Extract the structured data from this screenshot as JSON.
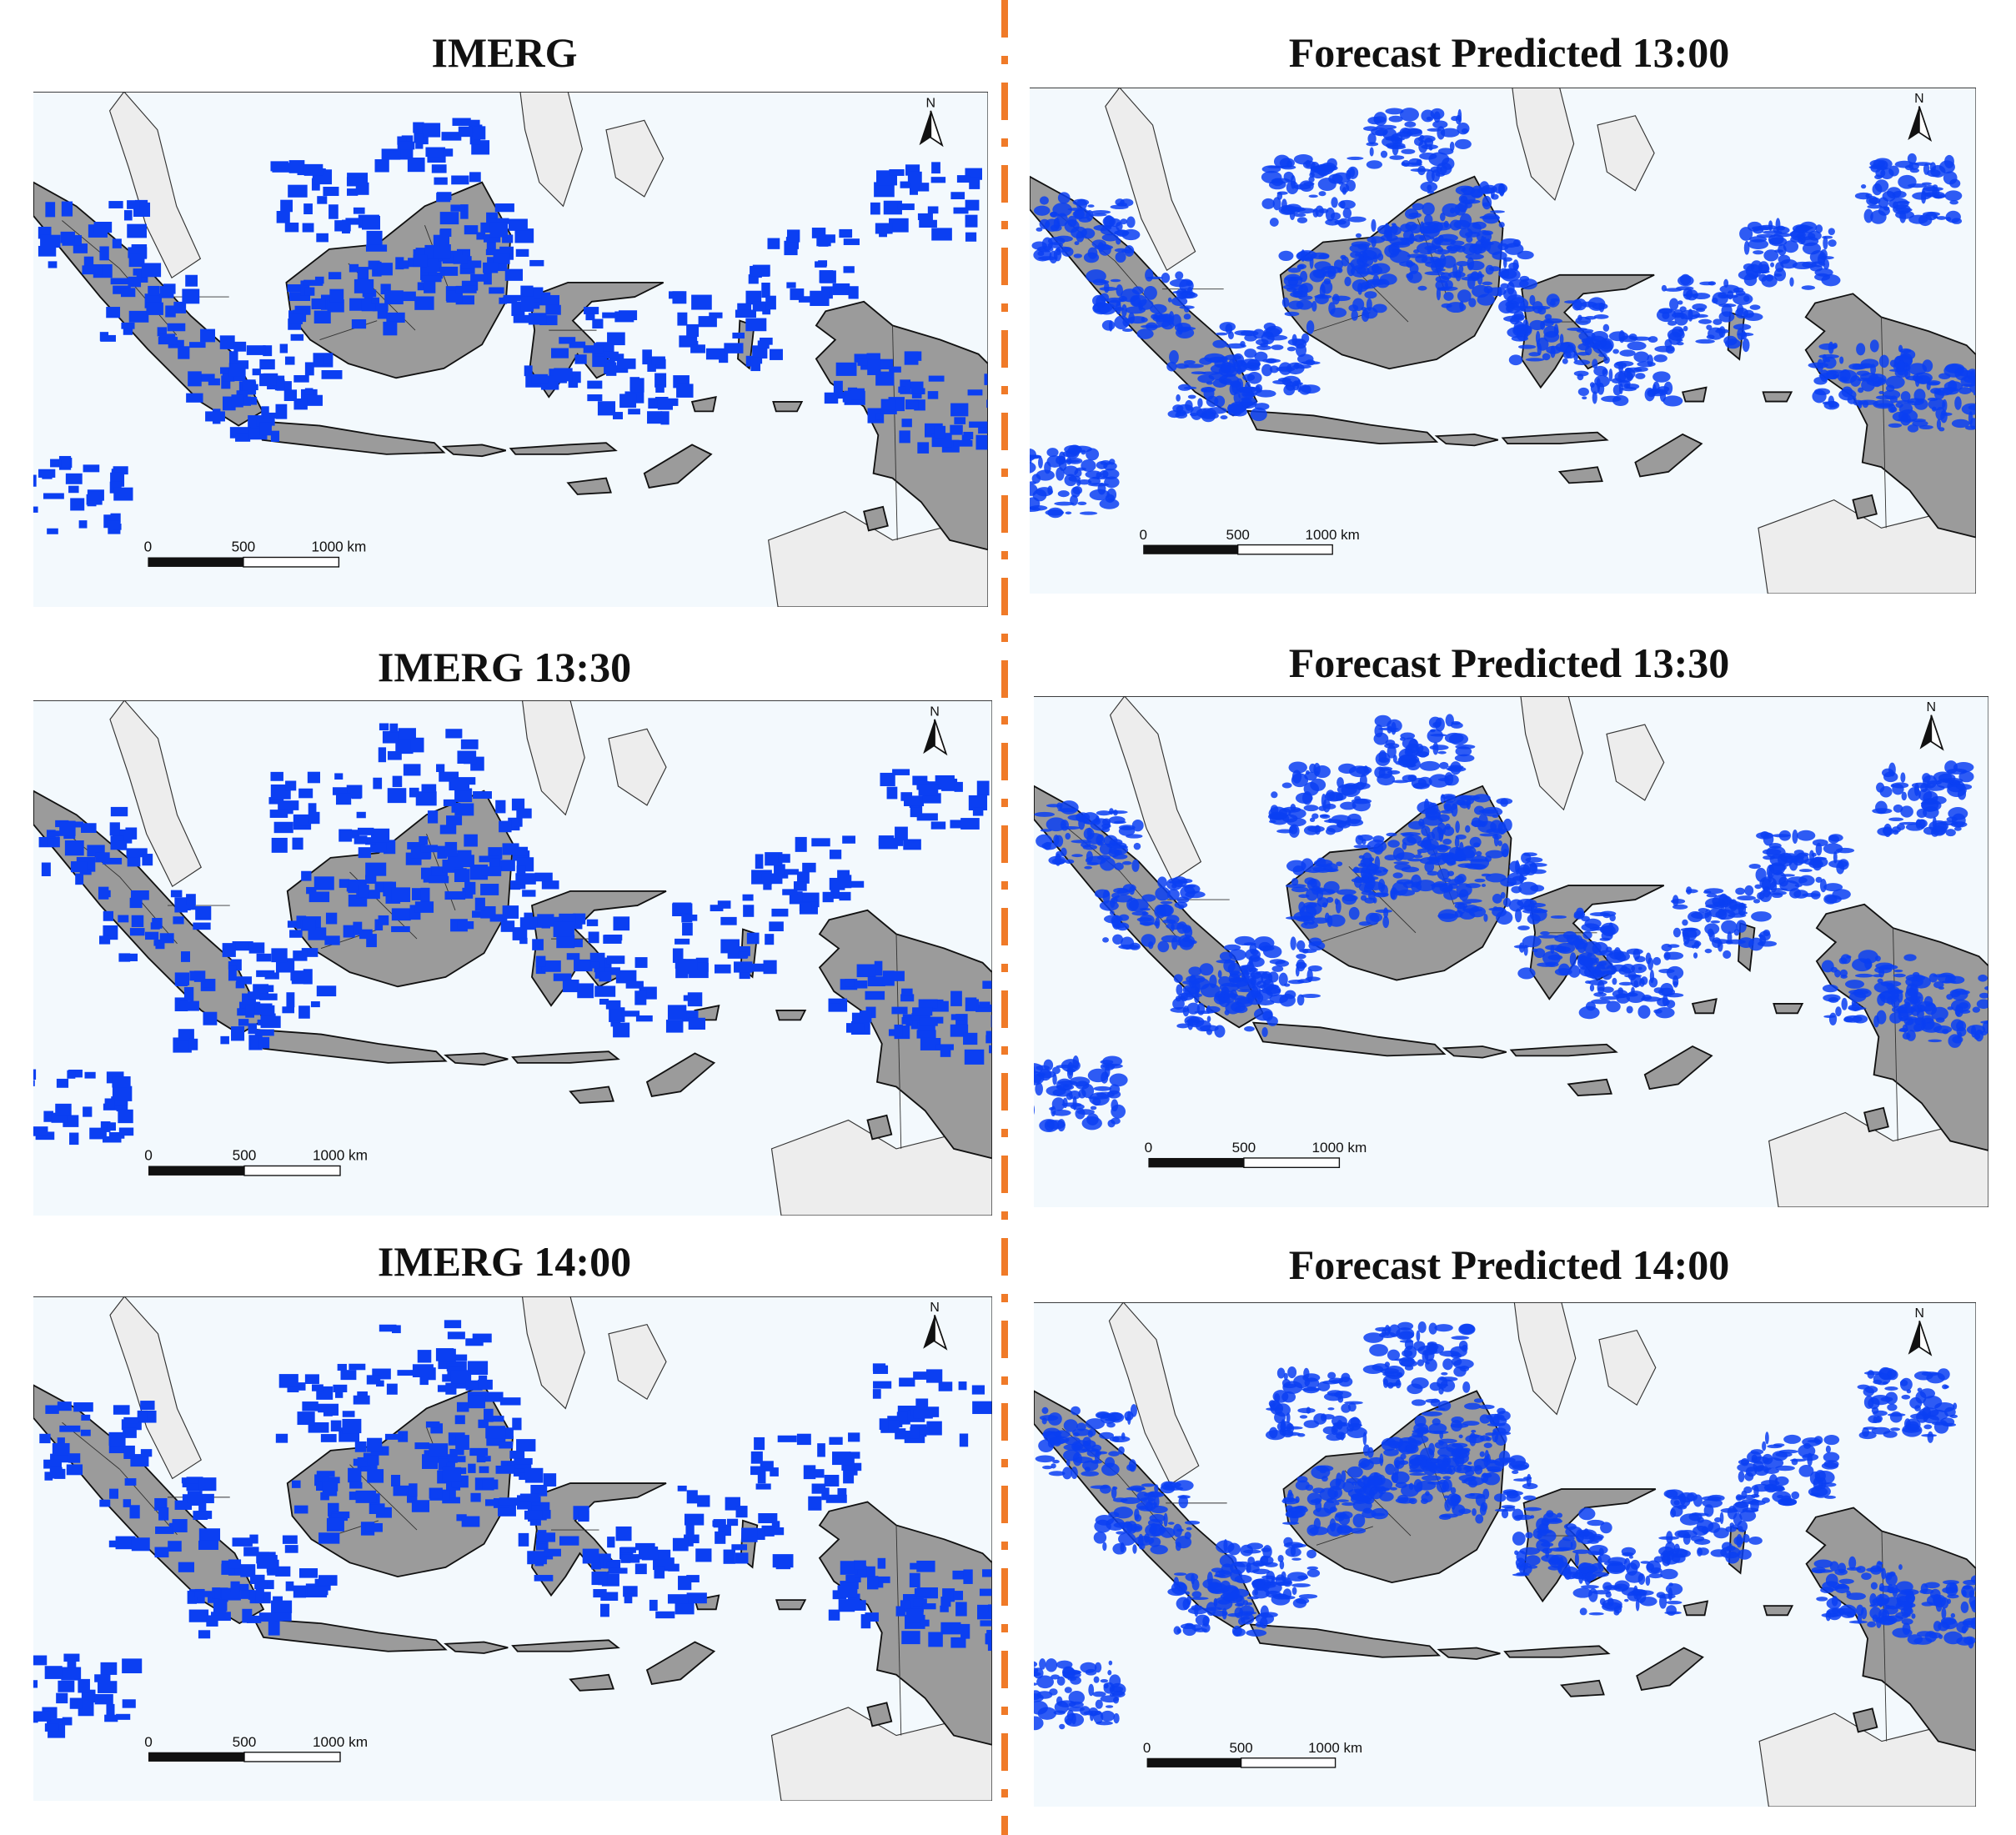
{
  "panels": [
    {
      "title": "IMERG",
      "variant": "imerg"
    },
    {
      "title": "Forecast Predicted 13:00",
      "variant": "forecast"
    },
    {
      "title": "IMERG 13:30",
      "variant": "imerg"
    },
    {
      "title": "Forecast Predicted 13:30",
      "variant": "forecast"
    },
    {
      "title": "IMERG 14:00",
      "variant": "imerg"
    },
    {
      "title": "Forecast Predicted 14:00",
      "variant": "forecast"
    }
  ],
  "scalebar": {
    "tick0": "0",
    "tick1": "500",
    "tick2": "1000 km"
  },
  "north_arrow": {
    "label": "N"
  },
  "colors": {
    "ocean": "#f3f9fd",
    "land_indonesia": "#9b9b9b",
    "land_other": "#ededed",
    "rain": "#0b3ff2",
    "divider": "#f07a28"
  }
}
